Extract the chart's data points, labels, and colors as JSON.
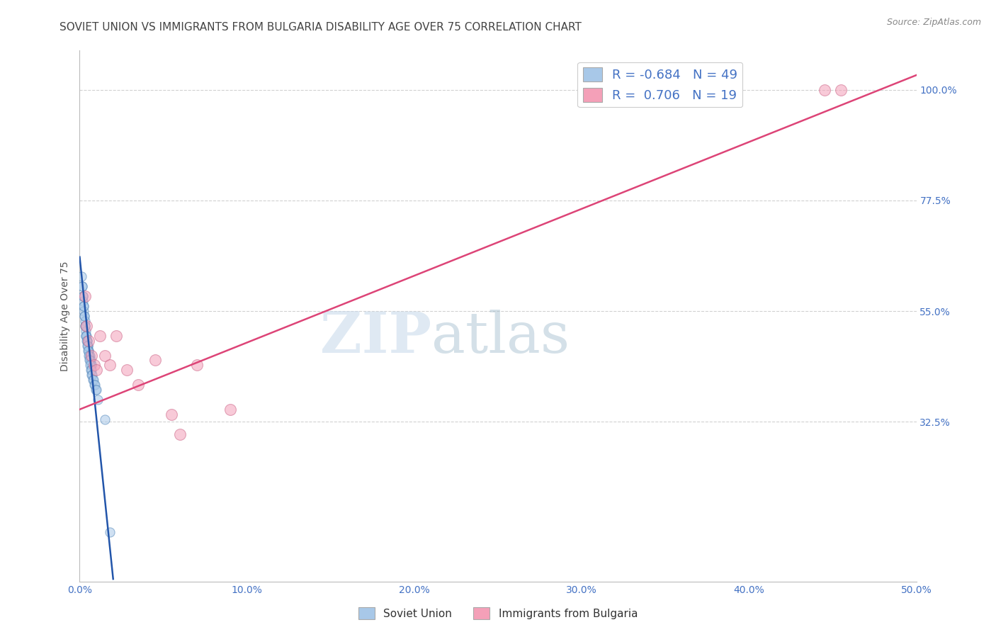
{
  "title": "SOVIET UNION VS IMMIGRANTS FROM BULGARIA DISABILITY AGE OVER 75 CORRELATION CHART",
  "source": "Source: ZipAtlas.com",
  "ylabel": "Disability Age Over 75",
  "watermark_zip": "ZIP",
  "watermark_atlas": "atlas",
  "legend_blue_r": "-0.684",
  "legend_blue_n": "49",
  "legend_pink_r": "0.706",
  "legend_pink_n": "19",
  "x_tick_vals": [
    0.0,
    10.0,
    20.0,
    30.0,
    40.0,
    50.0
  ],
  "x_tick_labels": [
    "0.0%",
    "10.0%",
    "20.0%",
    "30.0%",
    "40.0%",
    "50.0%"
  ],
  "y_tick_vals": [
    32.5,
    55.0,
    77.5,
    100.0
  ],
  "y_tick_labels_right": [
    "32.5%",
    "55.0%",
    "77.5%",
    "100.0%"
  ],
  "xlim": [
    0.0,
    50.0
  ],
  "ylim": [
    0.0,
    108.0
  ],
  "blue_color": "#a8c8e8",
  "blue_edge_color": "#5588bb",
  "blue_line_color": "#2255aa",
  "pink_color": "#f4a0b8",
  "pink_edge_color": "#cc6688",
  "pink_line_color": "#dd4477",
  "grid_color": "#cccccc",
  "background_color": "#ffffff",
  "blue_dots": {
    "x": [
      0.15,
      0.18,
      0.2,
      0.22,
      0.25,
      0.28,
      0.3,
      0.32,
      0.35,
      0.38,
      0.4,
      0.43,
      0.45,
      0.48,
      0.5,
      0.52,
      0.55,
      0.58,
      0.6,
      0.63,
      0.65,
      0.68,
      0.7,
      0.12,
      0.16,
      0.2,
      0.24,
      0.28,
      0.32,
      0.36,
      0.4,
      0.44,
      0.48,
      0.52,
      0.56,
      0.6,
      0.64,
      0.68,
      0.72,
      0.76,
      0.8,
      0.84,
      0.88,
      0.92,
      0.96,
      1.0,
      1.1,
      1.5,
      1.8
    ],
    "y": [
      60,
      58,
      57,
      56,
      55,
      54,
      53,
      52,
      51,
      50,
      50,
      49,
      49,
      48,
      48,
      47,
      47,
      46,
      46,
      45,
      45,
      44,
      44,
      62,
      60,
      58,
      56,
      54,
      52,
      50,
      49,
      48,
      47,
      46,
      45,
      44,
      43,
      43,
      42,
      42,
      41,
      41,
      40,
      40,
      39,
      39,
      37,
      33,
      10
    ]
  },
  "pink_dots": {
    "x": [
      0.3,
      0.42,
      0.55,
      0.7,
      0.85,
      1.0,
      1.2,
      1.5,
      1.8,
      2.2,
      2.8,
      3.5,
      4.5,
      5.5,
      6.0,
      7.0,
      9.0,
      44.5,
      45.5
    ],
    "y": [
      58,
      52,
      49,
      46,
      44,
      43,
      50,
      46,
      44,
      50,
      43,
      40,
      45,
      34,
      30,
      44,
      35,
      100,
      100
    ]
  },
  "blue_trendline": {
    "x": [
      0.0,
      2.0
    ],
    "y": [
      66.0,
      0.5
    ]
  },
  "pink_trendline": {
    "x": [
      0.0,
      50.0
    ],
    "y": [
      35.0,
      103.0
    ]
  },
  "title_fontsize": 11,
  "source_fontsize": 9,
  "label_fontsize": 10,
  "legend_fontsize": 13
}
